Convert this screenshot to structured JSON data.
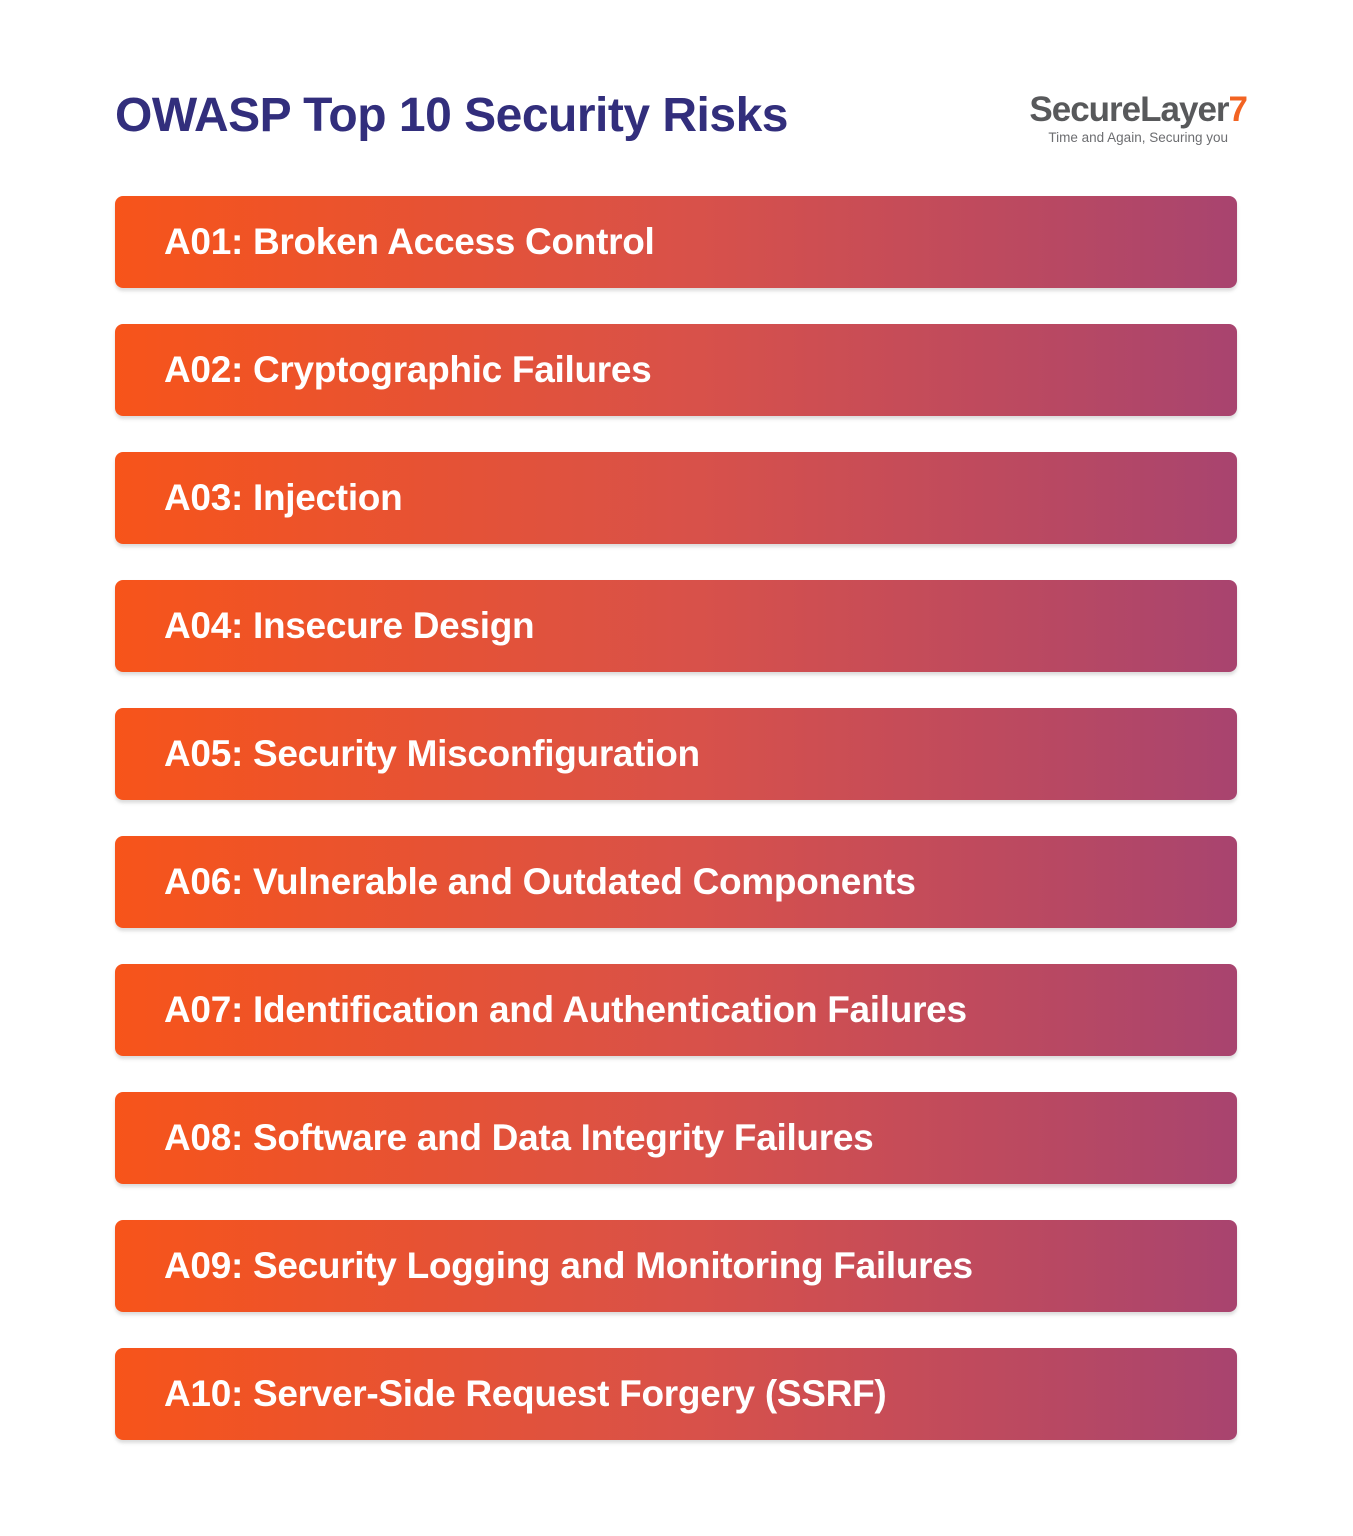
{
  "title": "OWASP Top 10 Security Risks",
  "logo": {
    "brand": "SecureLayer",
    "seven": "7",
    "tagline": "Time and Again, Securing you"
  },
  "colors": {
    "title_text": "#322e7c",
    "bar_gradient_start": "#f7541a",
    "bar_gradient_mid": "#d8514a",
    "bar_gradient_end": "#a8446f",
    "bar_text": "#ffffff",
    "brand_gray": "#58595b",
    "brand_orange": "#f26322",
    "tagline_gray": "#6d6e71"
  },
  "risks": [
    {
      "label": "A01: Broken Access Control"
    },
    {
      "label": "A02: Cryptographic Failures"
    },
    {
      "label": "A03: Injection"
    },
    {
      "label": "A04: Insecure Design"
    },
    {
      "label": "A05: Security Misconfiguration"
    },
    {
      "label": "A06: Vulnerable and Outdated Components"
    },
    {
      "label": "A07: Identification and Authentication Failures"
    },
    {
      "label": "A08: Software and Data Integrity Failures"
    },
    {
      "label": "A09: Security Logging and Monitoring Failures"
    },
    {
      "label": "A10: Server-Side Request Forgery (SSRF)"
    }
  ]
}
